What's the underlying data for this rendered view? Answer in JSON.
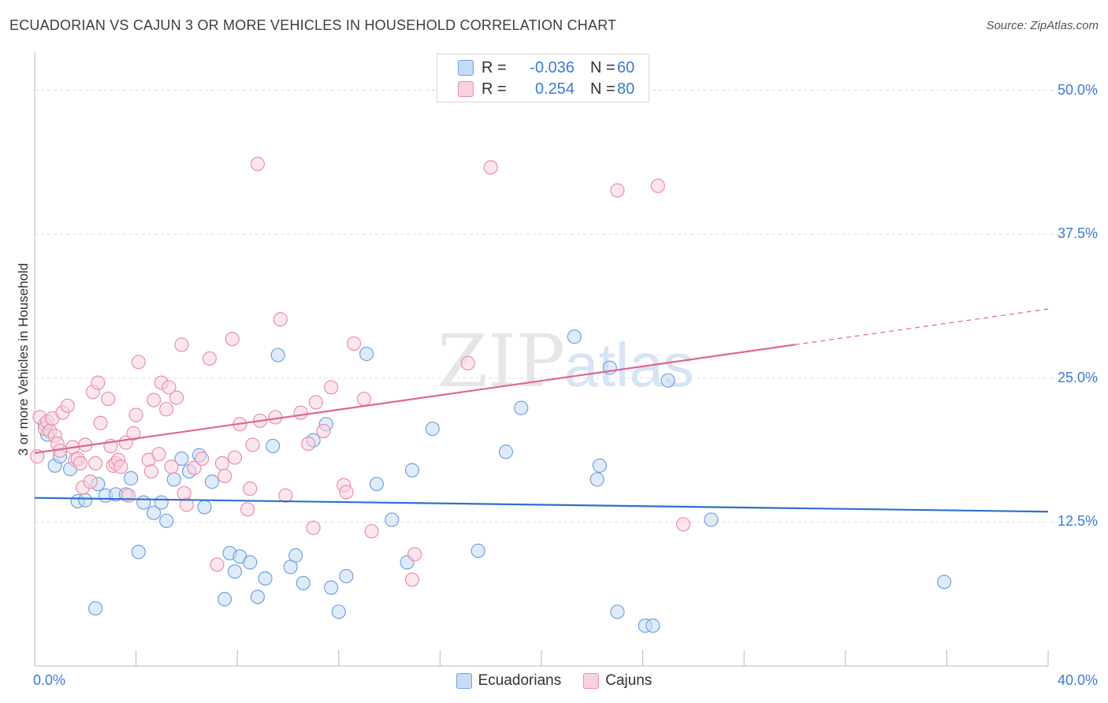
{
  "title": "ECUADORIAN VS CAJUN 3 OR MORE VEHICLES IN HOUSEHOLD CORRELATION CHART",
  "source": "Source: ZipAtlas.com",
  "watermark": {
    "zip": "ZIP",
    "atlas": "atlas"
  },
  "legend_top": {
    "rows": [
      {
        "r_label": "R =",
        "r_value": "-0.036",
        "n_label": "N =",
        "n_value": "60"
      },
      {
        "r_label": "R =",
        "r_value": "0.254",
        "n_label": "N =",
        "n_value": "80"
      }
    ]
  },
  "chart_data": {
    "type": "scatter",
    "title": "ECUADORIAN VS CAJUN 3 OR MORE VEHICLES IN HOUSEHOLD CORRELATION CHART",
    "xlabel": "",
    "ylabel": "3 or more Vehicles in Household",
    "xlim": [
      0,
      40
    ],
    "ylim": [
      0,
      52.5
    ],
    "x_tick_labels": [
      "0.0%",
      "40.0%"
    ],
    "y_ticks": [
      12.5,
      25.0,
      37.5,
      50.0
    ],
    "y_tick_labels": [
      "12.5%",
      "25.0%",
      "37.5%",
      "50.0%"
    ],
    "grid": true,
    "legend_position": "bottom",
    "series": [
      {
        "name": "Ecuadorians",
        "color": "#6fa3e0",
        "fill": "#c6dbf5",
        "r": -0.036,
        "n": 60,
        "trend": {
          "x0": 0,
          "y0": 14.6,
          "x1": 40,
          "y1": 13.4
        },
        "points": [
          [
            0.4,
            21.0
          ],
          [
            0.5,
            20.1
          ],
          [
            0.8,
            17.4
          ],
          [
            1.0,
            18.2
          ],
          [
            1.4,
            17.1
          ],
          [
            1.7,
            14.3
          ],
          [
            2.0,
            14.4
          ],
          [
            2.4,
            5.0
          ],
          [
            2.5,
            15.8
          ],
          [
            2.8,
            14.8
          ],
          [
            3.2,
            14.9
          ],
          [
            3.6,
            14.9
          ],
          [
            3.8,
            16.3
          ],
          [
            4.1,
            9.9
          ],
          [
            4.3,
            14.2
          ],
          [
            4.7,
            13.3
          ],
          [
            5.0,
            14.2
          ],
          [
            5.2,
            12.6
          ],
          [
            5.5,
            16.2
          ],
          [
            5.8,
            18.0
          ],
          [
            6.1,
            16.9
          ],
          [
            6.5,
            18.3
          ],
          [
            6.7,
            13.8
          ],
          [
            7.0,
            16.0
          ],
          [
            7.5,
            5.8
          ],
          [
            7.7,
            9.8
          ],
          [
            7.9,
            8.2
          ],
          [
            8.1,
            9.5
          ],
          [
            8.5,
            9.0
          ],
          [
            8.8,
            6.0
          ],
          [
            9.1,
            7.6
          ],
          [
            9.4,
            19.1
          ],
          [
            9.6,
            27.0
          ],
          [
            10.1,
            8.6
          ],
          [
            10.3,
            9.6
          ],
          [
            10.6,
            7.2
          ],
          [
            11.0,
            19.6
          ],
          [
            11.5,
            21.0
          ],
          [
            11.7,
            6.8
          ],
          [
            12.0,
            4.7
          ],
          [
            12.3,
            7.8
          ],
          [
            13.1,
            27.1
          ],
          [
            13.5,
            15.8
          ],
          [
            14.1,
            12.7
          ],
          [
            14.7,
            9.0
          ],
          [
            14.9,
            17.0
          ],
          [
            15.7,
            20.6
          ],
          [
            17.5,
            10.0
          ],
          [
            18.6,
            18.6
          ],
          [
            19.2,
            22.4
          ],
          [
            21.3,
            28.6
          ],
          [
            22.2,
            16.2
          ],
          [
            22.3,
            17.4
          ],
          [
            22.7,
            25.9
          ],
          [
            23.0,
            4.7
          ],
          [
            24.1,
            3.5
          ],
          [
            24.4,
            3.5
          ],
          [
            25.0,
            24.8
          ],
          [
            26.7,
            12.7
          ],
          [
            35.9,
            7.3
          ]
        ]
      },
      {
        "name": "Cajuns",
        "color": "#e891ab",
        "fill": "#f9d2de",
        "r": 0.254,
        "n": 80,
        "trend": {
          "x0": 0,
          "y0": 18.5,
          "x1": 30,
          "y1": 27.9
        },
        "trend_dashed": {
          "x0": 30,
          "y0": 27.9,
          "x1": 40,
          "y1": 31.0
        },
        "points": [
          [
            0.1,
            18.2
          ],
          [
            0.2,
            21.6
          ],
          [
            0.4,
            20.6
          ],
          [
            0.5,
            21.2
          ],
          [
            0.6,
            20.4
          ],
          [
            0.7,
            21.5
          ],
          [
            0.8,
            20.0
          ],
          [
            0.9,
            19.3
          ],
          [
            1.0,
            18.7
          ],
          [
            1.1,
            22.0
          ],
          [
            1.3,
            22.6
          ],
          [
            1.5,
            19.0
          ],
          [
            1.6,
            17.9
          ],
          [
            1.7,
            18.0
          ],
          [
            1.8,
            17.6
          ],
          [
            1.9,
            15.5
          ],
          [
            2.0,
            19.2
          ],
          [
            2.2,
            16.0
          ],
          [
            2.3,
            23.8
          ],
          [
            2.4,
            17.6
          ],
          [
            2.5,
            24.6
          ],
          [
            2.6,
            21.1
          ],
          [
            2.9,
            23.2
          ],
          [
            3.0,
            19.1
          ],
          [
            3.1,
            17.4
          ],
          [
            3.2,
            17.6
          ],
          [
            3.3,
            17.9
          ],
          [
            3.4,
            17.3
          ],
          [
            3.6,
            19.4
          ],
          [
            3.7,
            14.8
          ],
          [
            3.9,
            20.2
          ],
          [
            4.0,
            21.8
          ],
          [
            4.1,
            26.4
          ],
          [
            4.5,
            17.9
          ],
          [
            4.6,
            16.9
          ],
          [
            4.7,
            23.1
          ],
          [
            4.9,
            18.4
          ],
          [
            5.0,
            24.6
          ],
          [
            5.2,
            22.3
          ],
          [
            5.3,
            24.2
          ],
          [
            5.4,
            17.3
          ],
          [
            5.6,
            23.3
          ],
          [
            5.8,
            27.9
          ],
          [
            5.9,
            15.0
          ],
          [
            6.0,
            14.0
          ],
          [
            6.3,
            17.2
          ],
          [
            6.6,
            18.0
          ],
          [
            6.9,
            26.7
          ],
          [
            7.2,
            8.8
          ],
          [
            7.4,
            17.6
          ],
          [
            7.5,
            16.5
          ],
          [
            7.8,
            28.4
          ],
          [
            7.9,
            18.1
          ],
          [
            8.1,
            21.0
          ],
          [
            8.4,
            13.6
          ],
          [
            8.5,
            15.4
          ],
          [
            8.6,
            19.2
          ],
          [
            8.8,
            43.6
          ],
          [
            8.9,
            21.3
          ],
          [
            9.5,
            21.6
          ],
          [
            9.7,
            30.1
          ],
          [
            9.9,
            14.8
          ],
          [
            10.5,
            22.0
          ],
          [
            10.8,
            19.3
          ],
          [
            11.0,
            12.0
          ],
          [
            11.1,
            22.9
          ],
          [
            11.4,
            20.4
          ],
          [
            11.7,
            24.2
          ],
          [
            12.2,
            15.7
          ],
          [
            12.3,
            15.1
          ],
          [
            12.6,
            28.0
          ],
          [
            13.0,
            23.2
          ],
          [
            13.3,
            11.7
          ],
          [
            14.9,
            7.5
          ],
          [
            15.0,
            9.7
          ],
          [
            17.1,
            26.3
          ],
          [
            18.0,
            43.3
          ],
          [
            23.0,
            41.3
          ],
          [
            24.6,
            41.7
          ],
          [
            25.6,
            12.3
          ]
        ]
      }
    ]
  }
}
